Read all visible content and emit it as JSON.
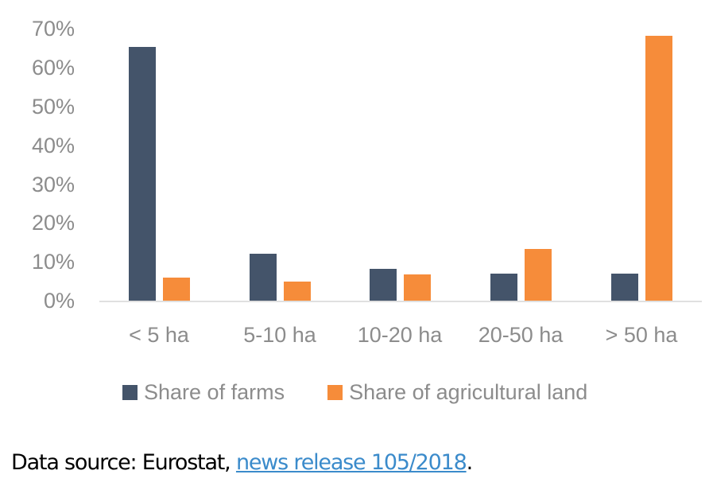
{
  "chart_data": {
    "type": "bar",
    "title": "",
    "xlabel": "",
    "ylabel": "",
    "categories": [
      "< 5 ha",
      "5-10 ha",
      "10-20 ha",
      "20-50 ha",
      "> 50 ha"
    ],
    "series": [
      {
        "name": "Share of farms",
        "color": "#44546a",
        "values": [
          65.4,
          12.1,
          8.2,
          7.0,
          7.0
        ]
      },
      {
        "name": "Share of agricultural land",
        "color": "#f68c3a",
        "values": [
          5.9,
          4.9,
          6.8,
          13.3,
          68.2
        ]
      }
    ],
    "ylim": [
      0,
      70
    ],
    "yticks": [
      "0%",
      "10%",
      "20%",
      "30%",
      "40%",
      "50%",
      "60%",
      "70%"
    ],
    "grid": false,
    "legend_position": "bottom"
  },
  "footer": {
    "prefix": "Data source: Eurostat, ",
    "link_text": "news release 105/2018",
    "suffix": "."
  }
}
